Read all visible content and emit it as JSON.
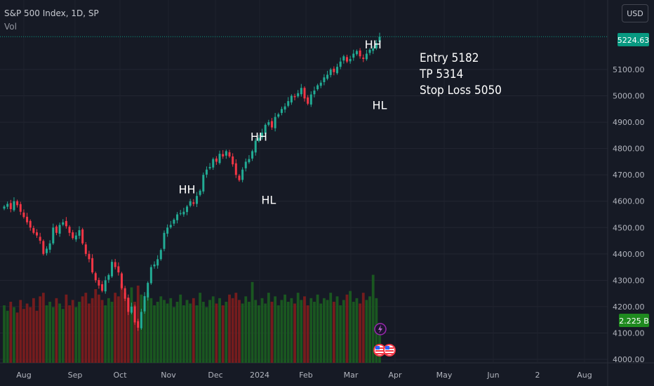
{
  "header": {
    "title": "S&P 500 Index, 1D, SP",
    "volume_label": "Vol",
    "currency_button": "USD"
  },
  "trade_note": {
    "entry": "Entry 5182",
    "tp": "TP 5314",
    "stop": "Stop Loss 5050"
  },
  "price_badges": {
    "last_price": "5224.63",
    "last_volume": "2.225 B"
  },
  "colors": {
    "background": "#161a25",
    "up": "#22ab94",
    "down": "#f23645",
    "volume_up": "#1b5e20",
    "volume_down": "#7f1d1d",
    "price_badge": "#089981",
    "volume_badge": "#1f8a1f"
  },
  "chart_data": {
    "type": "candlestick",
    "y_ticks": [
      "5100.00",
      "5000.00",
      "4900.00",
      "4800.00",
      "4700.00",
      "4600.00",
      "4500.00",
      "4400.00",
      "4300.00",
      "4200.00",
      "4100.00",
      "4000.00"
    ],
    "x_ticks": [
      "Aug",
      "Sep",
      "Oct",
      "Nov",
      "Dec",
      "2024",
      "Feb",
      "Mar",
      "Apr",
      "May",
      "Jun",
      "2",
      "Aug"
    ],
    "ylim": [
      4000,
      5224.63
    ],
    "annotations": [
      {
        "text": "HH",
        "date_index": 56,
        "price": 4630
      },
      {
        "text": "HH",
        "date_index": 78,
        "price": 4830
      },
      {
        "text": "HL",
        "date_index": 81,
        "price": 4590
      },
      {
        "text": "HH",
        "date_index": 113,
        "price": 5180
      },
      {
        "text": "HL",
        "date_index": 115,
        "price": 4950
      }
    ],
    "closes": [
      4580,
      4590,
      4570,
      4600,
      4585,
      4560,
      4540,
      4520,
      4500,
      4480,
      4470,
      4450,
      4400,
      4420,
      4440,
      4500,
      4480,
      4510,
      4520,
      4505,
      4480,
      4460,
      4470,
      4490,
      4440,
      4400,
      4380,
      4330,
      4300,
      4280,
      4260,
      4300,
      4320,
      4370,
      4350,
      4330,
      4270,
      4230,
      4180,
      4200,
      4140,
      4120,
      4180,
      4240,
      4290,
      4350,
      4360,
      4380,
      4415,
      4480,
      4500,
      4510,
      4530,
      4550,
      4555,
      4560,
      4580,
      4600,
      4590,
      4620,
      4640,
      4700,
      4720,
      4730,
      4760,
      4750,
      4780,
      4770,
      4790,
      4770,
      4740,
      4700,
      4680,
      4720,
      4750,
      4760,
      4790,
      4830,
      4840,
      4860,
      4890,
      4900,
      4880,
      4920,
      4930,
      4950,
      4960,
      4980,
      5000,
      4995,
      5010,
      5030,
      4990,
      4970,
      5005,
      5020,
      5040,
      5050,
      5070,
      5080,
      5100,
      5090,
      5110,
      5130,
      5150,
      5130,
      5140,
      5160,
      5170,
      5150,
      5140,
      5160,
      5175,
      5180,
      5200,
      5224.63
    ],
    "volumes_billion": [
      3.2,
      2.9,
      3.4,
      3.1,
      2.8,
      3.5,
      3.0,
      3.3,
      3.1,
      3.6,
      2.9,
      3.7,
      3.9,
      3.2,
      3.4,
      3.1,
      3.6,
      3.3,
      3.0,
      3.8,
      3.2,
      3.5,
      3.1,
      3.4,
      3.7,
      3.9,
      3.3,
      3.6,
      4.1,
      3.8,
      3.5,
      3.2,
      3.6,
      3.4,
      3.9,
      3.7,
      4.4,
      3.9,
      3.6,
      4.2,
      3.4,
      4.3,
      3.8,
      3.5,
      3.9,
      3.6,
      3.2,
      3.4,
      3.7,
      3.5,
      3.3,
      3.6,
      3.1,
      3.4,
      3.8,
      3.2,
      3.5,
      3.3,
      3.6,
      3.2,
      3.9,
      3.4,
      3.1,
      3.5,
      3.7,
      3.3,
      3.6,
      3.2,
      3.4,
      3.8,
      3.6,
      3.9,
      3.5,
      3.3,
      3.7,
      3.4,
      4.5,
      3.5,
      3.2,
      3.6,
      3.3,
      3.9,
      3.4,
      3.7,
      3.2,
      3.5,
      3.8,
      3.4,
      3.6,
      3.3,
      3.9,
      3.5,
      3.7,
      3.2,
      3.6,
      3.4,
      3.8,
      3.3,
      3.6,
      3.5,
      3.9,
      3.4,
      3.7,
      3.2,
      3.5,
      3.8,
      4.0,
      3.4,
      3.6,
      3.3,
      3.9,
      3.5,
      3.7,
      4.9,
      3.6,
      2.225
    ]
  }
}
